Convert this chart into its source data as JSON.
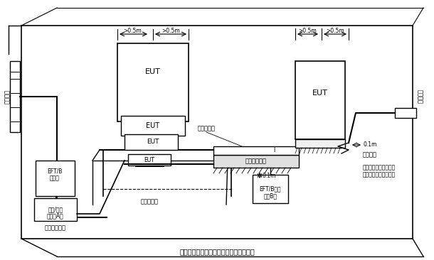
{
  "title": "（电快速瞬变脉冲群抗扰度实验方框图）",
  "bg_color": "#ffffff",
  "line_color": "#000000",
  "labels": {
    "ac_power_left": "交流电源",
    "eft_b_gen_a": "EFT/B\n发生器",
    "coupling_network": "耦合/去耦\n网络（A）",
    "ground_ref_bottom": "接地参考平面",
    "non_metal_table": "非金属桌子",
    "capacitive_clamp": "容性耦合夹",
    "ground_ref_center": "接地参考平面",
    "eft_b_gen_b": "EFT/B发生\n器（B）",
    "insulation_base": "绝缘支座",
    "insulation_note": "按制造商的规范接地，\n长度在试验计划中规定",
    "ac_power_right": "交流电源",
    "eut": "EUT",
    "dim_05m_1": ">0.5m",
    "dim_05m_2": ">0.5m",
    "dim_05m_3": ">0.5m",
    "dim_05m_4": ">0.5m",
    "dim_01m_1": "0.1m",
    "dim_01m_2": "0.1m",
    "dim_l": "l"
  }
}
